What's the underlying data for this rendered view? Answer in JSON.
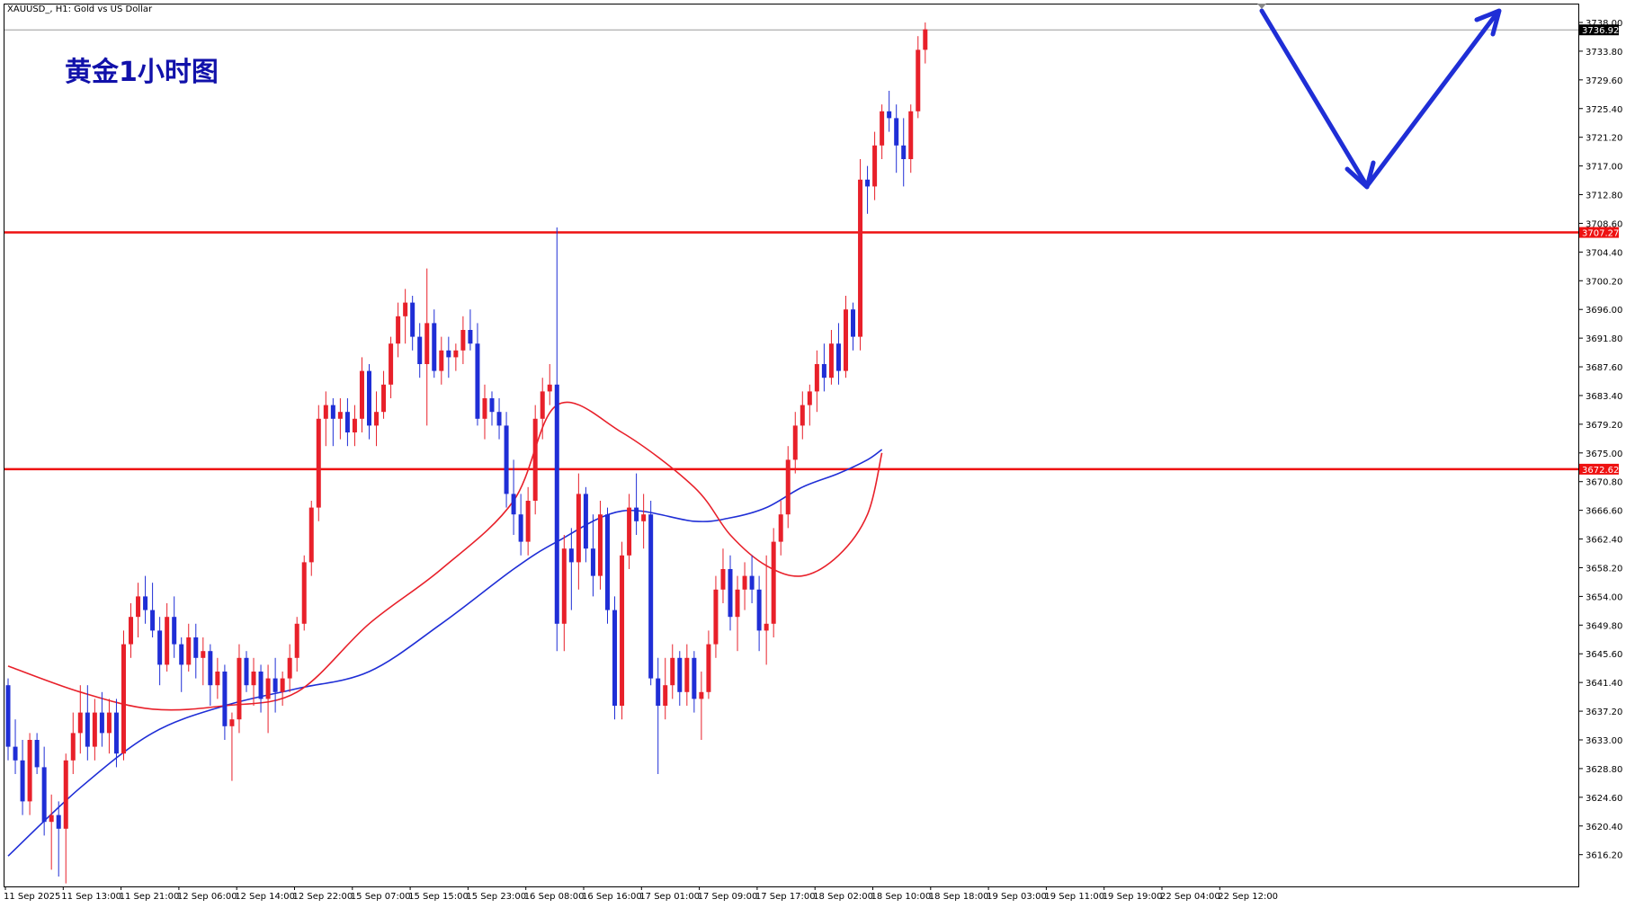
{
  "chart_data": {
    "type": "candlestick",
    "symbol_label": "XAUUSD_, H1:  Gold vs US Dollar",
    "title": "黄金1小时图",
    "colors": {
      "up": "#e8202a",
      "down": "#1f2ed6",
      "ma_fast": "#e8202a",
      "ma_slow": "#1f2ed6",
      "level": "#ee1111",
      "arrow": "#1f2ed6",
      "current_tag": "#000000"
    },
    "ylim": [
      3611.0,
      3740.6
    ],
    "y_ticks": [
      "3738.00",
      "3733.80",
      "3729.60",
      "3725.40",
      "3721.20",
      "3717.00",
      "3712.80",
      "3708.60",
      "3704.40",
      "3700.20",
      "3696.00",
      "3691.80",
      "3687.60",
      "3683.40",
      "3679.20",
      "3675.00",
      "3670.80",
      "3666.60",
      "3662.40",
      "3658.20",
      "3654.00",
      "3649.80",
      "3645.60",
      "3641.40",
      "3637.20",
      "3633.00",
      "3628.80",
      "3624.60",
      "3620.40",
      "3616.20"
    ],
    "x_labels": [
      "11 Sep 2025",
      "11 Sep 13:00",
      "11 Sep 21:00",
      "12 Sep 06:00",
      "12 Sep 14:00",
      "12 Sep 22:00",
      "15 Sep 07:00",
      "15 Sep 15:00",
      "15 Sep 23:00",
      "16 Sep 08:00",
      "16 Sep 16:00",
      "17 Sep 01:00",
      "17 Sep 09:00",
      "17 Sep 17:00",
      "18 Sep 02:00",
      "18 Sep 10:00",
      "18 Sep 18:00",
      "19 Sep 03:00",
      "19 Sep 11:00",
      "19 Sep 19:00",
      "22 Sep 04:00",
      "22 Sep 12:00"
    ],
    "levels": [
      {
        "name": "resistance",
        "value": 3707.27,
        "label": "3707.27"
      },
      {
        "name": "support",
        "value": 3672.62,
        "label": "3672.62"
      }
    ],
    "current_price": {
      "value": 3736.92,
      "label": "3736.92"
    },
    "ohlc": [
      [
        3641,
        3642,
        3630,
        3632
      ],
      [
        3632,
        3636,
        3628,
        3630
      ],
      [
        3630,
        3633,
        3622,
        3624
      ],
      [
        3624,
        3634,
        3622,
        3633
      ],
      [
        3633,
        3634,
        3628,
        3629
      ],
      [
        3629,
        3632,
        3619,
        3621
      ],
      [
        3621,
        3625,
        3614,
        3622
      ],
      [
        3622,
        3624,
        3613,
        3620
      ],
      [
        3620,
        3631,
        3612,
        3630
      ],
      [
        3630,
        3637,
        3628,
        3634
      ],
      [
        3634,
        3641,
        3631,
        3637
      ],
      [
        3637,
        3641,
        3630,
        3632
      ],
      [
        3632,
        3639,
        3630,
        3637
      ],
      [
        3637,
        3640,
        3632,
        3634
      ],
      [
        3634,
        3639,
        3631,
        3637
      ],
      [
        3637,
        3639,
        3629,
        3631
      ],
      [
        3631,
        3649,
        3630,
        3647
      ],
      [
        3647,
        3653,
        3645,
        3651
      ],
      [
        3651,
        3656,
        3648,
        3654
      ],
      [
        3654,
        3657,
        3650,
        3652
      ],
      [
        3652,
        3656,
        3648,
        3649
      ],
      [
        3649,
        3651,
        3641,
        3644
      ],
      [
        3644,
        3653,
        3643,
        3651
      ],
      [
        3651,
        3654,
        3645,
        3647
      ],
      [
        3647,
        3648,
        3640,
        3644
      ],
      [
        3644,
        3650,
        3643,
        3648
      ],
      [
        3648,
        3650,
        3642,
        3645
      ],
      [
        3645,
        3648,
        3641,
        3646
      ],
      [
        3646,
        3647,
        3638,
        3641
      ],
      [
        3641,
        3645,
        3639,
        3643
      ],
      [
        3643,
        3644,
        3633,
        3635
      ],
      [
        3635,
        3637,
        3627,
        3636
      ],
      [
        3636,
        3647,
        3634,
        3645
      ],
      [
        3645,
        3646,
        3640,
        3641
      ],
      [
        3641,
        3645,
        3638,
        3643
      ],
      [
        3643,
        3644,
        3637,
        3639
      ],
      [
        3639,
        3644,
        3634,
        3642
      ],
      [
        3642,
        3645,
        3637,
        3640
      ],
      [
        3640,
        3643,
        3638,
        3642
      ],
      [
        3642,
        3647,
        3640,
        3645
      ],
      [
        3645,
        3651,
        3643,
        3650
      ],
      [
        3650,
        3660,
        3649,
        3659
      ],
      [
        3659,
        3668,
        3657,
        3667
      ],
      [
        3667,
        3682,
        3665,
        3680
      ],
      [
        3680,
        3684,
        3676,
        3682
      ],
      [
        3682,
        3683,
        3676,
        3680
      ],
      [
        3680,
        3683,
        3677,
        3681
      ],
      [
        3681,
        3683,
        3676,
        3678
      ],
      [
        3678,
        3682,
        3676,
        3680
      ],
      [
        3680,
        3689,
        3678,
        3687
      ],
      [
        3687,
        3688,
        3677,
        3679
      ],
      [
        3679,
        3684,
        3676,
        3681
      ],
      [
        3681,
        3687,
        3680,
        3685
      ],
      [
        3685,
        3692,
        3683,
        3691
      ],
      [
        3691,
        3697,
        3689,
        3695
      ],
      [
        3695,
        3699,
        3691,
        3697
      ],
      [
        3697,
        3698,
        3690,
        3692
      ],
      [
        3692,
        3694,
        3686,
        3688
      ],
      [
        3688,
        3702,
        3679,
        3694
      ],
      [
        3694,
        3696,
        3686,
        3687
      ],
      [
        3687,
        3692,
        3685,
        3690
      ],
      [
        3690,
        3692,
        3686,
        3689
      ],
      [
        3689,
        3691,
        3687,
        3690
      ],
      [
        3690,
        3695,
        3688,
        3693
      ],
      [
        3693,
        3696,
        3690,
        3691
      ],
      [
        3691,
        3694,
        3679,
        3680
      ],
      [
        3680,
        3685,
        3677,
        3683
      ],
      [
        3683,
        3684,
        3679,
        3681
      ],
      [
        3681,
        3683,
        3677,
        3679
      ],
      [
        3679,
        3681,
        3667,
        3669
      ],
      [
        3669,
        3674,
        3663,
        3666
      ],
      [
        3666,
        3669,
        3660,
        3662
      ],
      [
        3662,
        3670,
        3660,
        3668
      ],
      [
        3668,
        3682,
        3666,
        3680
      ],
      [
        3680,
        3686,
        3677,
        3684
      ],
      [
        3684,
        3688,
        3682,
        3685
      ],
      [
        3685,
        3708,
        3646,
        3650
      ],
      [
        3650,
        3663,
        3646,
        3661
      ],
      [
        3661,
        3664,
        3652,
        3659
      ],
      [
        3659,
        3672,
        3655,
        3669
      ],
      [
        3669,
        3670,
        3659,
        3661
      ],
      [
        3661,
        3666,
        3654,
        3657
      ],
      [
        3657,
        3668,
        3655,
        3666
      ],
      [
        3666,
        3667,
        3650,
        3652
      ],
      [
        3652,
        3654,
        3636,
        3638
      ],
      [
        3638,
        3662,
        3636,
        3660
      ],
      [
        3660,
        3669,
        3658,
        3667
      ],
      [
        3667,
        3672,
        3663,
        3665
      ],
      [
        3665,
        3669,
        3661,
        3666
      ],
      [
        3666,
        3668,
        3641,
        3642
      ],
      [
        3642,
        3645,
        3628,
        3638
      ],
      [
        3638,
        3645,
        3636,
        3641
      ],
      [
        3641,
        3647,
        3639,
        3645
      ],
      [
        3645,
        3646,
        3638,
        3640
      ],
      [
        3640,
        3647,
        3638,
        3645
      ],
      [
        3645,
        3646,
        3637,
        3639
      ],
      [
        3639,
        3643,
        3633,
        3640
      ],
      [
        3640,
        3649,
        3639,
        3647
      ],
      [
        3647,
        3657,
        3645,
        3655
      ],
      [
        3655,
        3661,
        3653,
        3658
      ],
      [
        3658,
        3660,
        3649,
        3651
      ],
      [
        3651,
        3657,
        3646,
        3655
      ],
      [
        3655,
        3659,
        3652,
        3657
      ],
      [
        3657,
        3660,
        3653,
        3655
      ],
      [
        3655,
        3657,
        3646,
        3649
      ],
      [
        3649,
        3660,
        3644,
        3650
      ],
      [
        3650,
        3664,
        3648,
        3662
      ],
      [
        3662,
        3668,
        3660,
        3666
      ],
      [
        3666,
        3676,
        3664,
        3674
      ],
      [
        3674,
        3681,
        3672,
        3679
      ],
      [
        3679,
        3684,
        3677,
        3682
      ],
      [
        3682,
        3685,
        3679,
        3684
      ],
      [
        3684,
        3690,
        3681,
        3688
      ],
      [
        3688,
        3691,
        3684,
        3686
      ],
      [
        3686,
        3693,
        3685,
        3691
      ],
      [
        3691,
        3694,
        3685,
        3687
      ],
      [
        3687,
        3698,
        3686,
        3696
      ],
      [
        3696,
        3697,
        3690,
        3692
      ],
      [
        3692,
        3718,
        3690,
        3715
      ],
      [
        3715,
        3717,
        3710,
        3714
      ],
      [
        3714,
        3722,
        3712,
        3720
      ],
      [
        3720,
        3726,
        3718,
        3725
      ],
      [
        3725,
        3728,
        3722,
        3724
      ],
      [
        3724,
        3726,
        3716,
        3720
      ],
      [
        3720,
        3724,
        3714,
        3718
      ],
      [
        3718,
        3726,
        3716,
        3725
      ],
      [
        3725,
        3736,
        3724,
        3734
      ],
      [
        3734,
        3738,
        3732,
        3737
      ]
    ],
    "ma_fast": [
      [
        0,
        3643.8
      ],
      [
        10,
        3640
      ],
      [
        20,
        3637.5
      ],
      [
        30,
        3638
      ],
      [
        40,
        3640
      ],
      [
        50,
        3650
      ],
      [
        60,
        3658
      ],
      [
        70,
        3668
      ],
      [
        76,
        3682
      ],
      [
        85,
        3678
      ],
      [
        95,
        3670
      ],
      [
        100,
        3663
      ],
      [
        105,
        3658.5
      ],
      [
        110,
        3657
      ],
      [
        115,
        3660
      ],
      [
        119,
        3666
      ],
      [
        121,
        3675
      ]
    ],
    "ma_slow": [
      [
        0,
        3616
      ],
      [
        10,
        3626
      ],
      [
        20,
        3634
      ],
      [
        30,
        3638
      ],
      [
        40,
        3640.5
      ],
      [
        50,
        3643
      ],
      [
        60,
        3650
      ],
      [
        70,
        3658
      ],
      [
        76,
        3662
      ],
      [
        85,
        3666.5
      ],
      [
        95,
        3665
      ],
      [
        100,
        3665.5
      ],
      [
        105,
        3667
      ],
      [
        110,
        3670
      ],
      [
        115,
        3672
      ],
      [
        119,
        3674
      ],
      [
        121,
        3675.5
      ]
    ],
    "arrow_path": [
      [
        3737,
        3738
      ],
      [
        3741,
        3714
      ],
      [
        3738,
        3737
      ]
    ]
  }
}
